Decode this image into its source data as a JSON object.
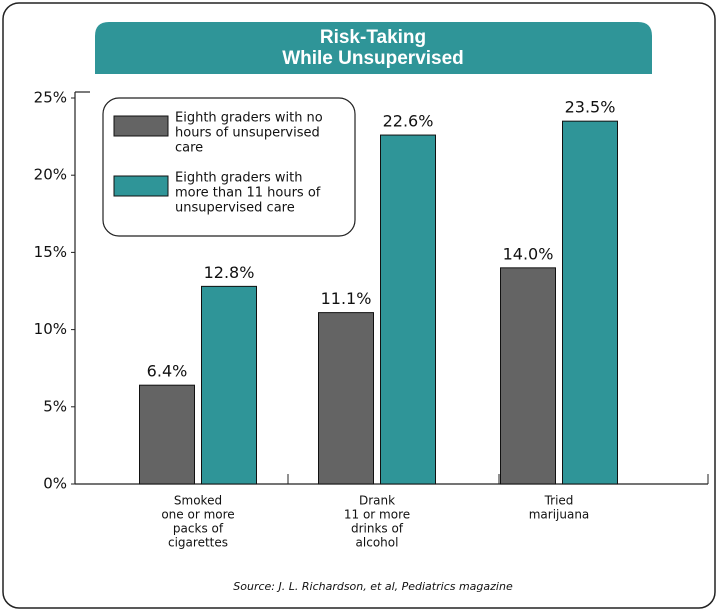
{
  "chart_data": {
    "type": "bar",
    "title": [
      "Risk-Taking",
      "While Unsupervised"
    ],
    "categories": [
      [
        "Smoked",
        "one or more",
        "packs of",
        "cigarettes"
      ],
      [
        "Drank",
        "11 or more",
        "drinks of",
        "alcohol"
      ],
      [
        "Tried",
        "marijuana"
      ]
    ],
    "series": [
      {
        "name": [
          "Eighth graders with no",
          "hours of unsupervised",
          "care"
        ],
        "color": "#646464",
        "values": [
          6.4,
          11.1,
          14.0
        ],
        "value_labels": [
          "6.4%",
          "11.1%",
          "14.0%"
        ]
      },
      {
        "name": [
          "Eighth graders with",
          "more than 11 hours of",
          "unsupervised care"
        ],
        "color": "#2f9598",
        "values": [
          12.8,
          22.6,
          23.5
        ],
        "value_labels": [
          "12.8%",
          "22.6%",
          "23.5%"
        ]
      }
    ],
    "ylim": [
      0,
      25
    ],
    "yticks": [
      {
        "value": 0,
        "label": "0%"
      },
      {
        "value": 5,
        "label": "5%"
      },
      {
        "value": 10,
        "label": "10%"
      },
      {
        "value": 15,
        "label": "15%"
      },
      {
        "value": 20,
        "label": "20%"
      },
      {
        "value": 25,
        "label": "25%"
      }
    ],
    "legend": "upper left",
    "source": "Source:  J. L. Richardson, et al, Pediatrics magazine"
  }
}
